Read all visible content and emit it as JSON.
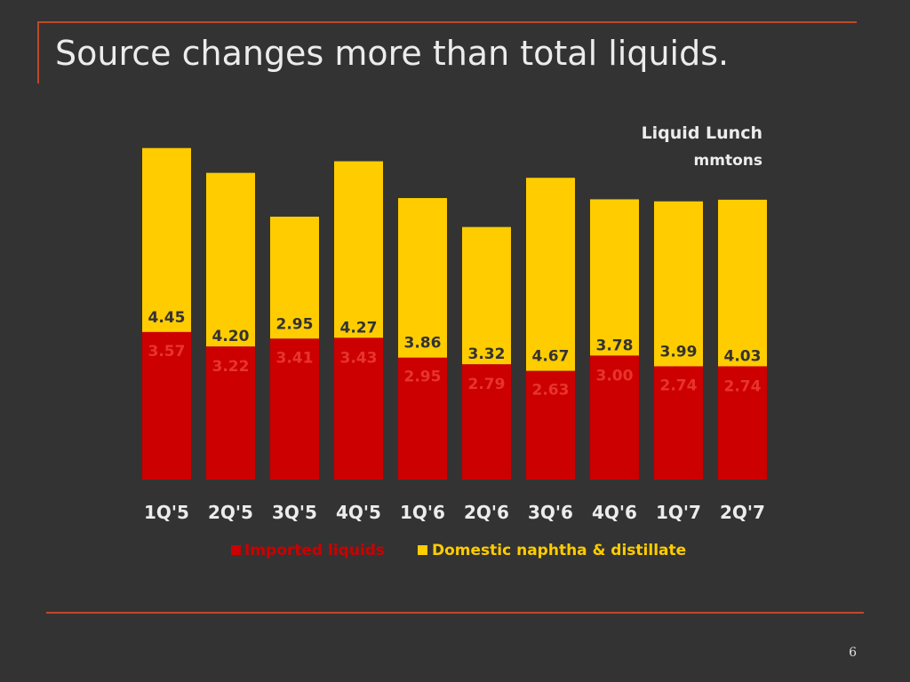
{
  "slide": {
    "title": "Source changes more than total liquids.",
    "page_number": "6"
  },
  "colors": {
    "background": "#333333",
    "rule": "#c0482a",
    "imported": "#cc0000",
    "domestic": "#ffcc00",
    "title_text": "#ececec"
  },
  "chart_data": {
    "type": "bar",
    "stacked": true,
    "title": "Liquid Lunch",
    "subtitle": "mmtons",
    "categories": [
      "1Q'5",
      "2Q'5",
      "3Q'5",
      "4Q'5",
      "1Q'6",
      "2Q'6",
      "3Q'6",
      "4Q'6",
      "1Q'7",
      "2Q'7"
    ],
    "series": [
      {
        "name": "Imported liquids",
        "color": "#cc0000",
        "values": [
          3.57,
          3.22,
          3.41,
          3.43,
          2.95,
          2.79,
          2.63,
          3.0,
          2.74,
          2.74
        ]
      },
      {
        "name": "Domestic naphtha & distillate",
        "color": "#ffcc00",
        "values": [
          4.45,
          4.2,
          2.95,
          4.27,
          3.86,
          3.32,
          4.67,
          3.78,
          3.99,
          4.03
        ]
      }
    ],
    "ylim": [
      0,
      8.1
    ],
    "grid": false,
    "legend_position": "bottom"
  }
}
